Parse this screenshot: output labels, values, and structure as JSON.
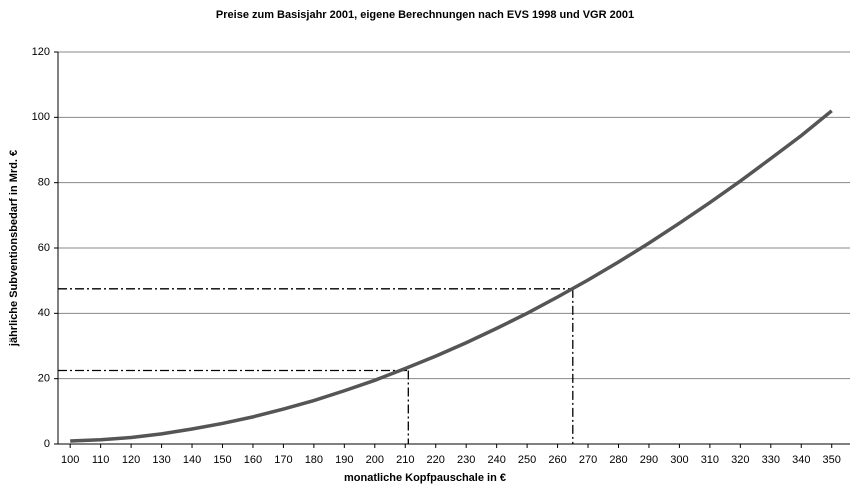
{
  "chart_data": {
    "type": "line",
    "title": "Preise zum Basisjahr 2001, eigene Berechnungen nach EVS 1998 und VGR 2001",
    "x_label": "monatliche  Kopfpauschale in €",
    "y_label": "jährliche Subventionsbedarf in Mrd. €",
    "x": [
      100,
      110,
      120,
      130,
      140,
      150,
      160,
      170,
      180,
      190,
      200,
      210,
      220,
      230,
      240,
      250,
      260,
      270,
      280,
      290,
      300,
      310,
      320,
      330,
      340,
      350
    ],
    "series": [
      {
        "color": "#555555",
        "values": [
          0.9,
          1.3,
          2.0,
          3.1,
          4.6,
          6.3,
          8.3,
          10.7,
          13.3,
          16.3,
          19.5,
          23.1,
          26.9,
          31.0,
          35.4,
          40.0,
          45.0,
          50.2,
          55.7,
          61.5,
          67.6,
          73.9,
          80.5,
          87.4,
          94.4,
          102.0
        ]
      }
    ],
    "reference_lines": [
      {
        "x": 211,
        "y": 22.5
      },
      {
        "x": 265,
        "y": 47.5
      }
    ],
    "xlim": [
      96,
      356
    ],
    "xticks": [
      100,
      110,
      120,
      130,
      140,
      150,
      160,
      170,
      180,
      190,
      200,
      210,
      220,
      230,
      240,
      250,
      260,
      270,
      280,
      290,
      300,
      310,
      320,
      330,
      340,
      350
    ],
    "ylim": [
      0,
      120
    ],
    "yticks": [
      0,
      20,
      40,
      60,
      80,
      100,
      120
    ],
    "grid": true
  }
}
